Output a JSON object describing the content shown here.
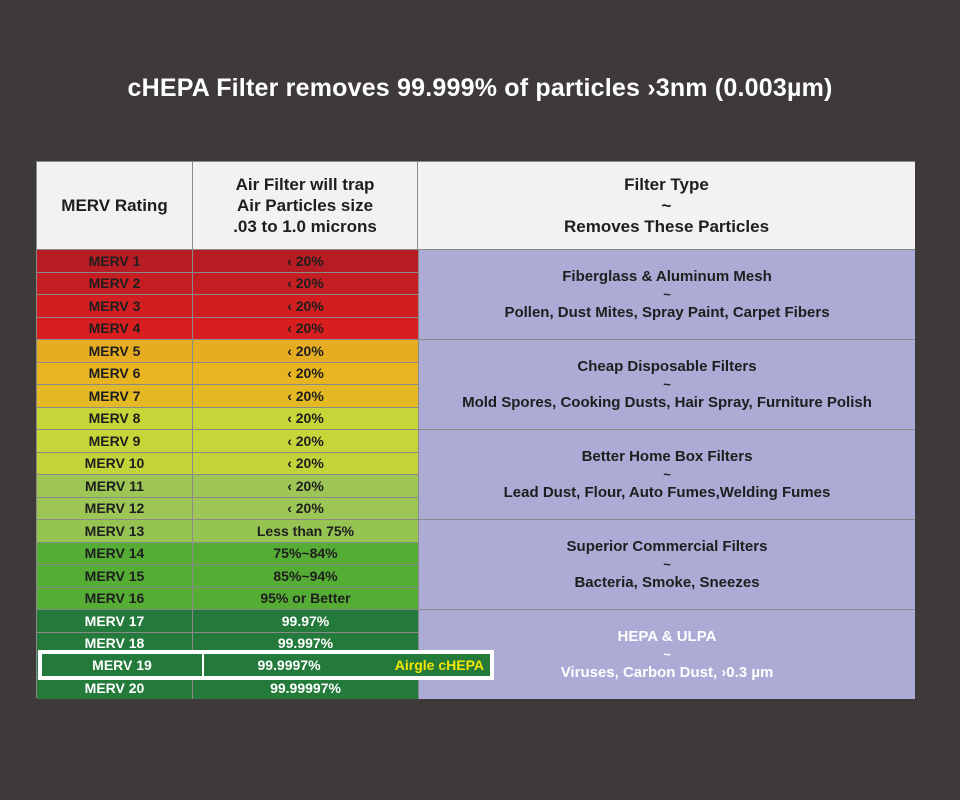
{
  "title": "cHEPA Filter removes 99.999% of particles ›3nm (0.003µm)",
  "header": {
    "col1": "MERV Rating",
    "col2_line1": "Air Filter will trap",
    "col2_line2": "Air Particles size",
    "col2_line3": ".03 to 1.0 microns",
    "col3_line1": "Filter Type",
    "col3_line2": "~",
    "col3_line3": "Removes These Particles"
  },
  "rows": [
    {
      "merv": "MERV 1",
      "trap": "‹ 20%",
      "color": "#b71c24"
    },
    {
      "merv": "MERV 2",
      "trap": "‹ 20%",
      "color": "#c41e23"
    },
    {
      "merv": "MERV 3",
      "trap": "‹ 20%",
      "color": "#d11f21"
    },
    {
      "merv": "MERV 4",
      "trap": "‹ 20%",
      "color": "#d81e1e"
    },
    {
      "merv": "MERV 5",
      "trap": "‹ 20%",
      "color": "#e6ad22"
    },
    {
      "merv": "MERV 6",
      "trap": "‹ 20%",
      "color": "#e8b420"
    },
    {
      "merv": "MERV 7",
      "trap": "‹ 20%",
      "color": "#e5b923"
    },
    {
      "merv": "MERV 8",
      "trap": "‹ 20%",
      "color": "#c6d538"
    },
    {
      "merv": "MERV 9",
      "trap": "‹ 20%",
      "color": "#c6d538"
    },
    {
      "merv": "MERV 10",
      "trap": "‹ 20%",
      "color": "#c3d43a"
    },
    {
      "merv": "MERV 11",
      "trap": "‹ 20%",
      "color": "#9dc656"
    },
    {
      "merv": "MERV 12",
      "trap": "‹ 20%",
      "color": "#9dc656"
    },
    {
      "merv": "MERV 13",
      "trap": "Less than 75%",
      "color": "#95c452"
    },
    {
      "merv": "MERV 14",
      "trap": "75%~84%",
      "color": "#56ad35"
    },
    {
      "merv": "MERV 15",
      "trap": "85%~94%",
      "color": "#56ad35"
    },
    {
      "merv": "MERV 16",
      "trap": "95% or Better",
      "color": "#56ad35"
    },
    {
      "merv": "MERV 17",
      "trap": "99.97%",
      "color": "#237a3b",
      "light": true
    },
    {
      "merv": "MERV 18",
      "trap": "99.997%",
      "color": "#237a3b",
      "light": true
    },
    {
      "merv": "MERV 19",
      "trap": "99.9997%",
      "color": "#237a3b",
      "light": true
    },
    {
      "merv": "MERV 20",
      "trap": "99.99997%",
      "color": "#237a3b",
      "light": true
    }
  ],
  "groups": [
    {
      "name": "Fiberglass & Aluminum Mesh",
      "sep": "~",
      "particles": "Pollen, Dust Mites, Spray Paint, Carpet Fibers"
    },
    {
      "name": "Cheap Disposable Filters",
      "sep": "~",
      "particles": "Mold Spores, Cooking Dusts, Hair Spray, Furniture Polish"
    },
    {
      "name": "Better Home Box Filters",
      "sep": "~",
      "particles": "Lead Dust, Flour, Auto Fumes,Welding Fumes"
    },
    {
      "name": "Superior Commercial Filters",
      "sep": "~",
      "particles": "Bacteria, Smoke, Sneezes"
    },
    {
      "name": "HEPA & ULPA",
      "sep": "~",
      "particles": "Viruses, Carbon Dust, ›0.3 µm"
    }
  ],
  "highlight": {
    "merv": "MERV 19",
    "trap": "99.9997%",
    "label": "Airgle cHEPA"
  }
}
